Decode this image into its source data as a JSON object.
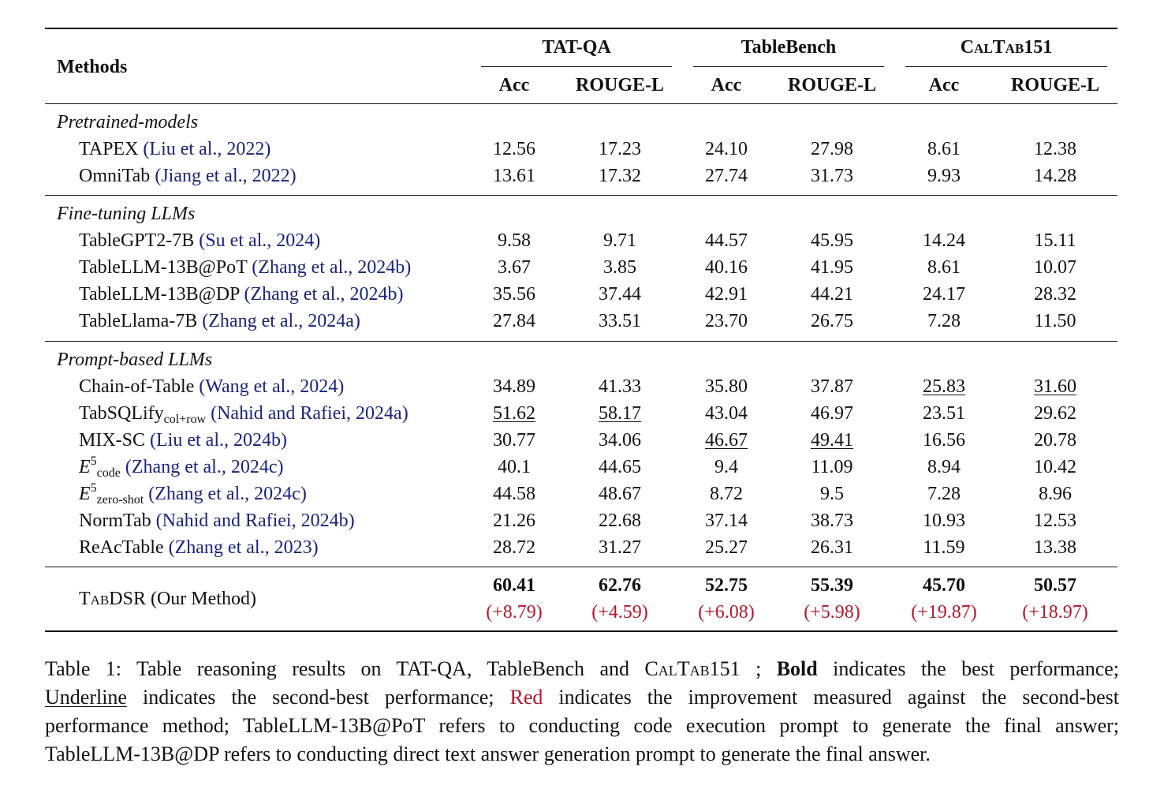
{
  "table": {
    "header": {
      "methods": "Methods",
      "datasets": [
        {
          "name": "TAT-QA",
          "cols": [
            "Acc",
            "ROUGE-L"
          ]
        },
        {
          "name": "TableBench",
          "cols": [
            "Acc",
            "ROUGE-L"
          ]
        },
        {
          "name_sc": "CalTab",
          "name_suffix": "151",
          "cols": [
            "Acc",
            "ROUGE-L"
          ]
        }
      ]
    },
    "groups": [
      {
        "label": "Pretrained-models",
        "rows": [
          {
            "method": "TAPEX",
            "cite": "Liu et al., 2022",
            "values": [
              "12.56",
              "17.23",
              "24.10",
              "27.98",
              "8.61",
              "12.38"
            ]
          },
          {
            "method": "OmniTab",
            "cite": "Jiang et al., 2022",
            "values": [
              "13.61",
              "17.32",
              "27.74",
              "31.73",
              "9.93",
              "14.28"
            ]
          }
        ]
      },
      {
        "label": "Fine-tuning LLMs",
        "rows": [
          {
            "method": "TableGPT2-7B",
            "cite": "Su et al., 2024",
            "values": [
              "9.58",
              "9.71",
              "44.57",
              "45.95",
              "14.24",
              "15.11"
            ]
          },
          {
            "method": "TableLLM-13B@PoT",
            "cite": "Zhang et al., 2024b",
            "values": [
              "3.67",
              "3.85",
              "40.16",
              "41.95",
              "8.61",
              "10.07"
            ]
          },
          {
            "method": "TableLLM-13B@DP",
            "cite": "Zhang et al., 2024b",
            "values": [
              "35.56",
              "37.44",
              "42.91",
              "44.21",
              "24.17",
              "28.32"
            ]
          },
          {
            "method": "TableLlama-7B",
            "cite": "Zhang et al., 2024a",
            "values": [
              "27.84",
              "33.51",
              "23.70",
              "26.75",
              "7.28",
              "11.50"
            ]
          }
        ]
      },
      {
        "label": "Prompt-based LLMs",
        "rows": [
          {
            "method": "Chain-of-Table",
            "cite": "Wang et al., 2024",
            "values": [
              "34.89",
              "41.33",
              "35.80",
              "37.87",
              "25.83",
              "31.60"
            ],
            "underline": [
              4,
              5
            ]
          },
          {
            "method": "TabSQLify",
            "method_sub": "col+row",
            "cite": "Nahid and Rafiei, 2024a",
            "values": [
              "51.62",
              "58.17",
              "43.04",
              "46.97",
              "23.51",
              "29.62"
            ],
            "underline": [
              0,
              1
            ]
          },
          {
            "method": "MIX-SC",
            "cite": "Liu et al., 2024b",
            "values": [
              "30.77",
              "34.06",
              "46.67",
              "49.41",
              "16.56",
              "20.78"
            ],
            "underline": [
              2,
              3
            ]
          },
          {
            "method": "E",
            "method_sup": "5",
            "method_sub": "code",
            "cite": "Zhang et al., 2024c",
            "values": [
              "40.1",
              "44.65",
              "9.4",
              "11.09",
              "8.94",
              "10.42"
            ]
          },
          {
            "method": "E",
            "method_sup": "5",
            "method_sub": "zero-shot",
            "cite": "Zhang et al., 2024c",
            "values": [
              "44.58",
              "48.67",
              "8.72",
              "9.5",
              "7.28",
              "8.96"
            ]
          },
          {
            "method": "NormTab",
            "cite": "Nahid and Rafiei, 2024b",
            "values": [
              "21.26",
              "22.68",
              "37.14",
              "38.73",
              "10.93",
              "12.53"
            ]
          },
          {
            "method": "ReAcTable",
            "cite": "Zhang et al., 2023",
            "values": [
              "28.72",
              "31.27",
              "25.27",
              "26.31",
              "11.59",
              "13.38"
            ]
          }
        ]
      }
    ],
    "ours": {
      "method_sc": "TabDSR",
      "method_suffix": " (Our Method)",
      "values": [
        "60.41",
        "62.76",
        "52.75",
        "55.39",
        "45.70",
        "50.57"
      ],
      "improvements": [
        "(+8.79)",
        "(+4.59)",
        "(+6.08)",
        "(+5.98)",
        "(+19.87)",
        "(+18.97)"
      ]
    }
  },
  "caption": {
    "l1_a": "Table 1: Table reasoning results on TAT-QA, TableBench and ",
    "l1_sc": "CalTab",
    "l1_b": "151 ; ",
    "l1_bold": "Bold",
    "l1_c": " indicates the best performance;",
    "l2_u": "Underline",
    "l2_a": " indicates the second-best performance; ",
    "l2_red": "Red",
    "l2_b": " indicates the improvement measured against the second-best",
    "l3": "performance method; TableLLM-13B@PoT refers to conducting code execution prompt to generate the final answer;",
    "l4": "TableLLM-13B@DP refers to conducting direct text answer generation prompt to generate the final answer."
  },
  "colors": {
    "citation": "#1a237e",
    "improvement": "#b5162b"
  }
}
